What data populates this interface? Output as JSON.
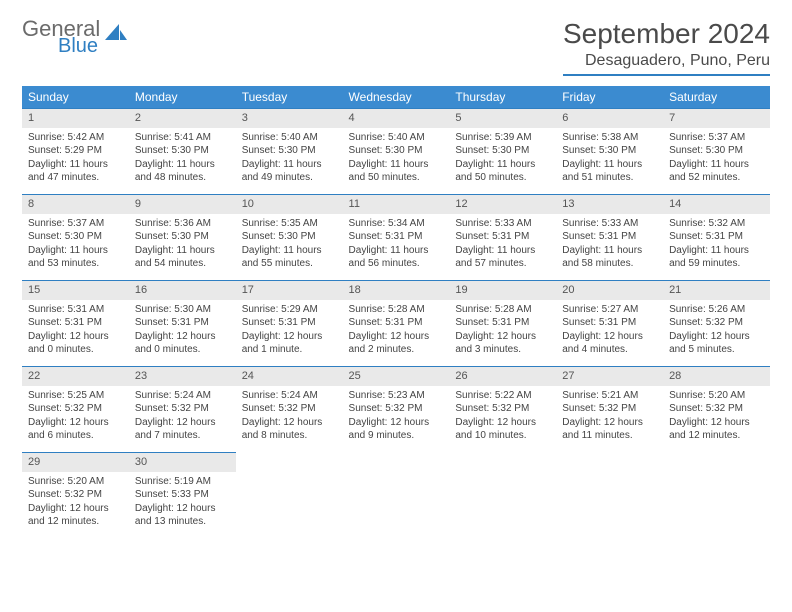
{
  "logo": {
    "line1": "General",
    "line2": "Blue"
  },
  "title": "September 2024",
  "location": "Desaguadero, Puno, Peru",
  "colors": {
    "header_bg": "#3b8bd0",
    "accent": "#2f7fc2",
    "daynum_bg": "#e9e9e9",
    "text": "#444444",
    "logo_gray": "#6b6b6b"
  },
  "weekdays": [
    "Sunday",
    "Monday",
    "Tuesday",
    "Wednesday",
    "Thursday",
    "Friday",
    "Saturday"
  ],
  "weeks": [
    [
      {
        "n": "1",
        "sr": "Sunrise: 5:42 AM",
        "ss": "Sunset: 5:29 PM",
        "dl": "Daylight: 11 hours and 47 minutes."
      },
      {
        "n": "2",
        "sr": "Sunrise: 5:41 AM",
        "ss": "Sunset: 5:30 PM",
        "dl": "Daylight: 11 hours and 48 minutes."
      },
      {
        "n": "3",
        "sr": "Sunrise: 5:40 AM",
        "ss": "Sunset: 5:30 PM",
        "dl": "Daylight: 11 hours and 49 minutes."
      },
      {
        "n": "4",
        "sr": "Sunrise: 5:40 AM",
        "ss": "Sunset: 5:30 PM",
        "dl": "Daylight: 11 hours and 50 minutes."
      },
      {
        "n": "5",
        "sr": "Sunrise: 5:39 AM",
        "ss": "Sunset: 5:30 PM",
        "dl": "Daylight: 11 hours and 50 minutes."
      },
      {
        "n": "6",
        "sr": "Sunrise: 5:38 AM",
        "ss": "Sunset: 5:30 PM",
        "dl": "Daylight: 11 hours and 51 minutes."
      },
      {
        "n": "7",
        "sr": "Sunrise: 5:37 AM",
        "ss": "Sunset: 5:30 PM",
        "dl": "Daylight: 11 hours and 52 minutes."
      }
    ],
    [
      {
        "n": "8",
        "sr": "Sunrise: 5:37 AM",
        "ss": "Sunset: 5:30 PM",
        "dl": "Daylight: 11 hours and 53 minutes."
      },
      {
        "n": "9",
        "sr": "Sunrise: 5:36 AM",
        "ss": "Sunset: 5:30 PM",
        "dl": "Daylight: 11 hours and 54 minutes."
      },
      {
        "n": "10",
        "sr": "Sunrise: 5:35 AM",
        "ss": "Sunset: 5:30 PM",
        "dl": "Daylight: 11 hours and 55 minutes."
      },
      {
        "n": "11",
        "sr": "Sunrise: 5:34 AM",
        "ss": "Sunset: 5:31 PM",
        "dl": "Daylight: 11 hours and 56 minutes."
      },
      {
        "n": "12",
        "sr": "Sunrise: 5:33 AM",
        "ss": "Sunset: 5:31 PM",
        "dl": "Daylight: 11 hours and 57 minutes."
      },
      {
        "n": "13",
        "sr": "Sunrise: 5:33 AM",
        "ss": "Sunset: 5:31 PM",
        "dl": "Daylight: 11 hours and 58 minutes."
      },
      {
        "n": "14",
        "sr": "Sunrise: 5:32 AM",
        "ss": "Sunset: 5:31 PM",
        "dl": "Daylight: 11 hours and 59 minutes."
      }
    ],
    [
      {
        "n": "15",
        "sr": "Sunrise: 5:31 AM",
        "ss": "Sunset: 5:31 PM",
        "dl": "Daylight: 12 hours and 0 minutes."
      },
      {
        "n": "16",
        "sr": "Sunrise: 5:30 AM",
        "ss": "Sunset: 5:31 PM",
        "dl": "Daylight: 12 hours and 0 minutes."
      },
      {
        "n": "17",
        "sr": "Sunrise: 5:29 AM",
        "ss": "Sunset: 5:31 PM",
        "dl": "Daylight: 12 hours and 1 minute."
      },
      {
        "n": "18",
        "sr": "Sunrise: 5:28 AM",
        "ss": "Sunset: 5:31 PM",
        "dl": "Daylight: 12 hours and 2 minutes."
      },
      {
        "n": "19",
        "sr": "Sunrise: 5:28 AM",
        "ss": "Sunset: 5:31 PM",
        "dl": "Daylight: 12 hours and 3 minutes."
      },
      {
        "n": "20",
        "sr": "Sunrise: 5:27 AM",
        "ss": "Sunset: 5:31 PM",
        "dl": "Daylight: 12 hours and 4 minutes."
      },
      {
        "n": "21",
        "sr": "Sunrise: 5:26 AM",
        "ss": "Sunset: 5:32 PM",
        "dl": "Daylight: 12 hours and 5 minutes."
      }
    ],
    [
      {
        "n": "22",
        "sr": "Sunrise: 5:25 AM",
        "ss": "Sunset: 5:32 PM",
        "dl": "Daylight: 12 hours and 6 minutes."
      },
      {
        "n": "23",
        "sr": "Sunrise: 5:24 AM",
        "ss": "Sunset: 5:32 PM",
        "dl": "Daylight: 12 hours and 7 minutes."
      },
      {
        "n": "24",
        "sr": "Sunrise: 5:24 AM",
        "ss": "Sunset: 5:32 PM",
        "dl": "Daylight: 12 hours and 8 minutes."
      },
      {
        "n": "25",
        "sr": "Sunrise: 5:23 AM",
        "ss": "Sunset: 5:32 PM",
        "dl": "Daylight: 12 hours and 9 minutes."
      },
      {
        "n": "26",
        "sr": "Sunrise: 5:22 AM",
        "ss": "Sunset: 5:32 PM",
        "dl": "Daylight: 12 hours and 10 minutes."
      },
      {
        "n": "27",
        "sr": "Sunrise: 5:21 AM",
        "ss": "Sunset: 5:32 PM",
        "dl": "Daylight: 12 hours and 11 minutes."
      },
      {
        "n": "28",
        "sr": "Sunrise: 5:20 AM",
        "ss": "Sunset: 5:32 PM",
        "dl": "Daylight: 12 hours and 12 minutes."
      }
    ],
    [
      {
        "n": "29",
        "sr": "Sunrise: 5:20 AM",
        "ss": "Sunset: 5:32 PM",
        "dl": "Daylight: 12 hours and 12 minutes."
      },
      {
        "n": "30",
        "sr": "Sunrise: 5:19 AM",
        "ss": "Sunset: 5:33 PM",
        "dl": "Daylight: 12 hours and 13 minutes."
      },
      null,
      null,
      null,
      null,
      null
    ]
  ]
}
